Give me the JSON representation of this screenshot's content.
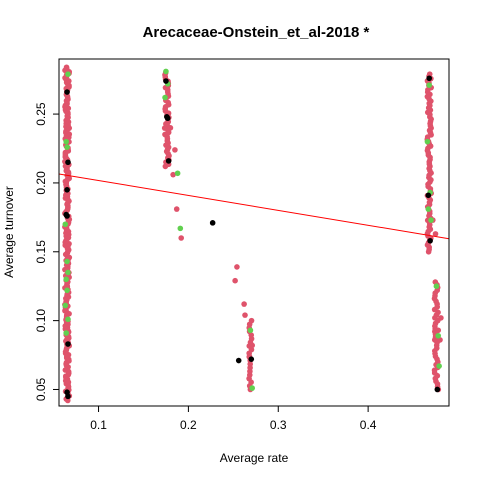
{
  "chart_data": {
    "type": "scatter",
    "title": "Arecaceae-Onstein_et_al-2018 *",
    "xlabel": "Average rate",
    "ylabel": "Average turnover",
    "xlim": [
      0.056,
      0.49
    ],
    "ylim": [
      0.038,
      0.29
    ],
    "x_ticks": [
      0.1,
      0.2,
      0.3,
      0.4
    ],
    "x_tick_labels": [
      "0.1",
      "0.2",
      "0.3",
      "0.4"
    ],
    "y_ticks": [
      0.05,
      0.1,
      0.15,
      0.2,
      0.25
    ],
    "y_tick_labels": [
      "0.05",
      "0.10",
      "0.15",
      "0.20",
      "0.25"
    ],
    "grid": false,
    "legend": "none",
    "colors": {
      "red": "#DF536B",
      "green": "#61D04F",
      "black": "#000000",
      "fit_line": "#FF0000"
    },
    "fit_line": {
      "x": [
        0.056,
        0.49
      ],
      "y": [
        0.2065,
        0.1595
      ]
    },
    "series": [
      {
        "color": "red",
        "clusters": [
          {
            "x": 0.065,
            "x_jitter": 0.0025,
            "y_range": [
              0.042,
              0.284
            ],
            "count": 220
          },
          {
            "x": 0.176,
            "x_jitter": 0.0025,
            "y_range": [
              0.212,
              0.28
            ],
            "count": 45
          },
          {
            "x": 0.468,
            "x_jitter": 0.0022,
            "y_range": [
              0.15,
              0.279
            ],
            "count": 80
          },
          {
            "x": 0.476,
            "x_jitter": 0.0022,
            "y_range": [
              0.05,
              0.128
            ],
            "count": 40
          },
          {
            "x": 0.269,
            "x_jitter": 0.0015,
            "y_range": [
              0.05,
              0.1
            ],
            "count": 20
          }
        ],
        "points": [
          {
            "x": 0.185,
            "y": 0.224
          },
          {
            "x": 0.187,
            "y": 0.181
          },
          {
            "x": 0.183,
            "y": 0.206
          },
          {
            "x": 0.18,
            "y": 0.24
          },
          {
            "x": 0.192,
            "y": 0.16
          },
          {
            "x": 0.254,
            "y": 0.139
          },
          {
            "x": 0.252,
            "y": 0.129
          },
          {
            "x": 0.262,
            "y": 0.112
          },
          {
            "x": 0.263,
            "y": 0.104
          },
          {
            "x": 0.271,
            "y": 0.082
          },
          {
            "x": 0.268,
            "y": 0.074
          },
          {
            "x": 0.48,
            "y": 0.086
          },
          {
            "x": 0.478,
            "y": 0.093
          },
          {
            "x": 0.481,
            "y": 0.102
          },
          {
            "x": 0.475,
            "y": 0.163
          },
          {
            "x": 0.472,
            "y": 0.173
          }
        ]
      },
      {
        "color": "green",
        "points": [
          {
            "x": 0.066,
            "y": 0.279
          },
          {
            "x": 0.064,
            "y": 0.23
          },
          {
            "x": 0.065,
            "y": 0.226
          },
          {
            "x": 0.063,
            "y": 0.17
          },
          {
            "x": 0.065,
            "y": 0.143
          },
          {
            "x": 0.066,
            "y": 0.135
          },
          {
            "x": 0.064,
            "y": 0.13
          },
          {
            "x": 0.065,
            "y": 0.122
          },
          {
            "x": 0.063,
            "y": 0.111
          },
          {
            "x": 0.066,
            "y": 0.101
          },
          {
            "x": 0.064,
            "y": 0.091
          },
          {
            "x": 0.175,
            "y": 0.281
          },
          {
            "x": 0.177,
            "y": 0.272
          },
          {
            "x": 0.174,
            "y": 0.262
          },
          {
            "x": 0.188,
            "y": 0.207
          },
          {
            "x": 0.191,
            "y": 0.167
          },
          {
            "x": 0.269,
            "y": 0.093
          },
          {
            "x": 0.271,
            "y": 0.051
          },
          {
            "x": 0.468,
            "y": 0.271
          },
          {
            "x": 0.466,
            "y": 0.23
          },
          {
            "x": 0.469,
            "y": 0.193
          },
          {
            "x": 0.467,
            "y": 0.181
          },
          {
            "x": 0.47,
            "y": 0.173
          },
          {
            "x": 0.478,
            "y": 0.089
          },
          {
            "x": 0.479,
            "y": 0.067
          },
          {
            "x": 0.476,
            "y": 0.125
          }
        ]
      },
      {
        "color": "black",
        "points": [
          {
            "x": 0.065,
            "y": 0.266
          },
          {
            "x": 0.066,
            "y": 0.215
          },
          {
            "x": 0.065,
            "y": 0.195
          },
          {
            "x": 0.064,
            "y": 0.177
          },
          {
            "x": 0.065,
            "y": 0.176
          },
          {
            "x": 0.066,
            "y": 0.083
          },
          {
            "x": 0.065,
            "y": 0.048
          },
          {
            "x": 0.066,
            "y": 0.045
          },
          {
            "x": 0.175,
            "y": 0.274
          },
          {
            "x": 0.176,
            "y": 0.248
          },
          {
            "x": 0.177,
            "y": 0.247
          },
          {
            "x": 0.178,
            "y": 0.216
          },
          {
            "x": 0.227,
            "y": 0.171
          },
          {
            "x": 0.256,
            "y": 0.071
          },
          {
            "x": 0.27,
            "y": 0.072
          },
          {
            "x": 0.468,
            "y": 0.276
          },
          {
            "x": 0.467,
            "y": 0.191
          },
          {
            "x": 0.469,
            "y": 0.158
          },
          {
            "x": 0.477,
            "y": 0.05
          }
        ]
      }
    ]
  }
}
